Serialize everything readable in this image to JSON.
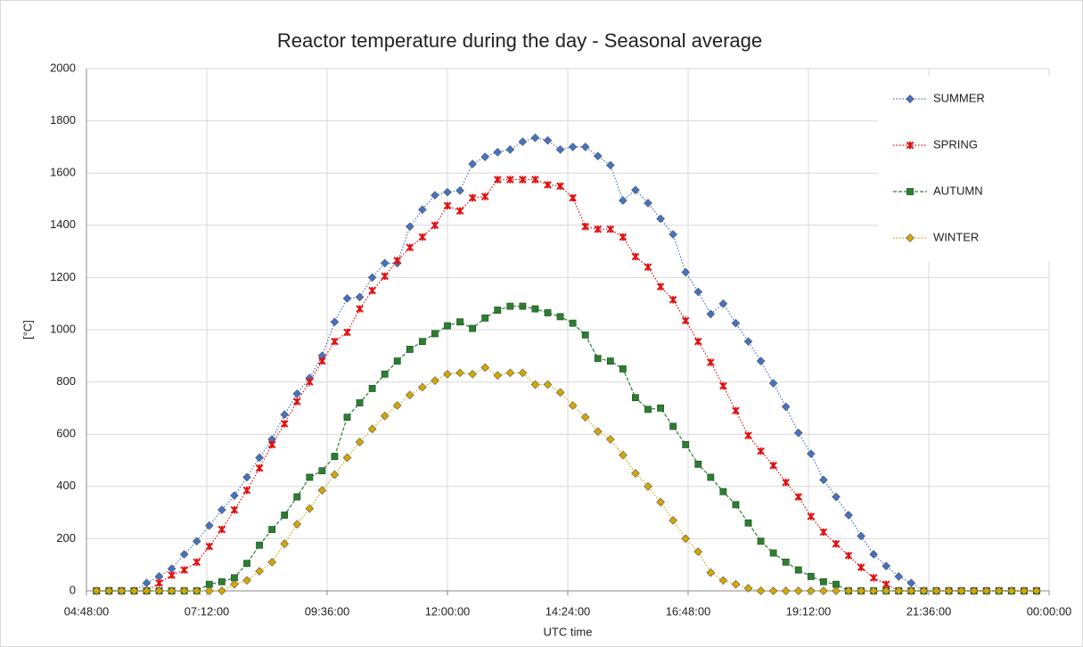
{
  "chart_data": {
    "type": "line",
    "title": "Reactor temperature during the day - Seasonal average",
    "x_label": "UTC time",
    "y_label": "[°C]",
    "x": [
      300,
      315,
      330,
      345,
      360,
      375,
      390,
      405,
      420,
      435,
      450,
      465,
      480,
      495,
      510,
      525,
      540,
      555,
      570,
      585,
      600,
      615,
      630,
      645,
      660,
      675,
      690,
      705,
      720,
      735,
      750,
      765,
      780,
      795,
      810,
      825,
      840,
      855,
      870,
      885,
      900,
      915,
      930,
      945,
      960,
      975,
      990,
      1005,
      1020,
      1035,
      1050,
      1065,
      1080,
      1095,
      1110,
      1125,
      1140,
      1155,
      1170,
      1185,
      1200,
      1215,
      1230,
      1245,
      1260,
      1275,
      1290,
      1305,
      1320,
      1335,
      1350,
      1365,
      1380,
      1395,
      1410,
      1425
    ],
    "xlim": [
      288,
      1440
    ],
    "xticks": [
      {
        "value": 288,
        "label": "04:48:00"
      },
      {
        "value": 432,
        "label": "07:12:00"
      },
      {
        "value": 576,
        "label": "09:36:00"
      },
      {
        "value": 720,
        "label": "12:00:00"
      },
      {
        "value": 864,
        "label": "14:24:00"
      },
      {
        "value": 1008,
        "label": "16:48:00"
      },
      {
        "value": 1152,
        "label": "19:12:00"
      },
      {
        "value": 1296,
        "label": "21:36:00"
      },
      {
        "value": 1440,
        "label": "00:00:00"
      }
    ],
    "ylim": [
      0,
      2000
    ],
    "yticks": [
      0,
      200,
      400,
      600,
      800,
      1000,
      1200,
      1400,
      1600,
      1800,
      2000
    ],
    "grid": true,
    "legend": "right",
    "series": [
      {
        "name": "SUMMER",
        "color": "#4472c4",
        "marker": "diamond",
        "dash": "dotted",
        "values": [
          0,
          0,
          0,
          0,
          30,
          55,
          85,
          140,
          190,
          250,
          310,
          365,
          435,
          510,
          580,
          675,
          755,
          815,
          900,
          1030,
          1120,
          1125,
          1200,
          1255,
          1255,
          1395,
          1460,
          1515,
          1527,
          1533,
          1635,
          1662,
          1680,
          1690,
          1720,
          1735,
          1725,
          1690,
          1700,
          1700,
          1665,
          1630,
          1495,
          1535,
          1485,
          1425,
          1365,
          1220,
          1145,
          1060,
          1100,
          1025,
          955,
          880,
          795,
          705,
          605,
          525,
          425,
          360,
          290,
          210,
          140,
          95,
          55,
          30,
          0,
          0,
          0,
          0,
          0,
          0,
          0,
          0,
          0,
          0
        ]
      },
      {
        "name": "SPRING",
        "color": "#e01010",
        "marker": "star",
        "dash": "dotted",
        "values": [
          0,
          0,
          0,
          0,
          0,
          30,
          60,
          80,
          110,
          170,
          235,
          310,
          385,
          470,
          560,
          640,
          725,
          800,
          880,
          955,
          990,
          1080,
          1150,
          1205,
          1265,
          1315,
          1355,
          1400,
          1475,
          1455,
          1505,
          1510,
          1575,
          1575,
          1575,
          1575,
          1555,
          1550,
          1505,
          1395,
          1385,
          1385,
          1355,
          1280,
          1240,
          1165,
          1115,
          1035,
          955,
          875,
          785,
          690,
          595,
          535,
          480,
          415,
          360,
          285,
          225,
          180,
          135,
          90,
          50,
          25,
          0,
          0,
          0,
          0,
          0,
          0,
          0,
          0,
          0,
          0,
          0,
          0
        ]
      },
      {
        "name": "AUTUMN",
        "color": "#2e7d32",
        "marker": "square",
        "dash": "dashed",
        "values": [
          0,
          0,
          0,
          0,
          0,
          0,
          0,
          0,
          0,
          25,
          35,
          50,
          105,
          175,
          235,
          290,
          360,
          435,
          460,
          515,
          665,
          720,
          775,
          830,
          880,
          925,
          955,
          985,
          1015,
          1030,
          1005,
          1045,
          1075,
          1090,
          1090,
          1080,
          1065,
          1050,
          1025,
          980,
          890,
          880,
          850,
          740,
          695,
          700,
          630,
          560,
          485,
          435,
          380,
          330,
          260,
          190,
          145,
          110,
          80,
          55,
          35,
          25,
          0,
          0,
          0,
          0,
          0,
          0,
          0,
          0,
          0,
          0,
          0,
          0,
          0,
          0,
          0,
          0
        ]
      },
      {
        "name": "WINTER",
        "color": "#d4a800",
        "marker": "diamond",
        "dash": "dotted",
        "values": [
          0,
          0,
          0,
          0,
          0,
          0,
          0,
          0,
          0,
          0,
          0,
          25,
          40,
          75,
          110,
          180,
          255,
          315,
          385,
          445,
          510,
          570,
          620,
          670,
          710,
          750,
          780,
          805,
          830,
          835,
          830,
          855,
          825,
          835,
          835,
          790,
          790,
          760,
          710,
          665,
          610,
          580,
          520,
          450,
          400,
          340,
          270,
          200,
          150,
          70,
          40,
          25,
          10,
          0,
          0,
          0,
          0,
          0,
          0,
          0,
          0,
          0,
          0,
          0,
          0,
          0,
          0,
          0,
          0,
          0,
          0,
          0,
          0,
          0,
          0,
          0
        ]
      }
    ]
  }
}
